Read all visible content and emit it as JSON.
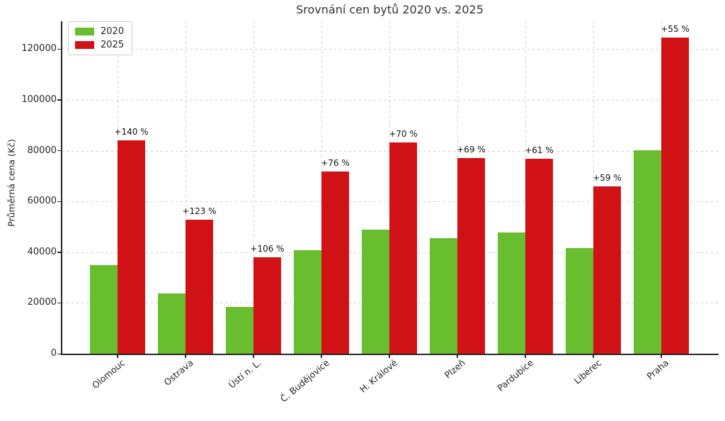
{
  "chart_data": {
    "type": "bar",
    "title": "Srovnání cen bytů 2020 vs. 2025",
    "xlabel": "",
    "ylabel": "Průměrná cena (Kč)",
    "categories": [
      "Olomouc",
      "Ostrava",
      "Ústí n. L.",
      "Č. Budějovice",
      "H. Králové",
      "Plzeň",
      "Pardubice",
      "Liberec",
      "Praha"
    ],
    "series": [
      {
        "name": "2020",
        "color": "#69be30",
        "values": [
          35000,
          23700,
          18500,
          40800,
          49000,
          45600,
          47700,
          41500,
          80300
        ]
      },
      {
        "name": "2025",
        "color": "#d01216",
        "values": [
          84000,
          52900,
          38100,
          71800,
          83300,
          77000,
          76800,
          66000,
          124500
        ]
      }
    ],
    "annotations": [
      "+140 %",
      "+123 %",
      "+106 %",
      "+76 %",
      "+70 %",
      "+69 %",
      "+61 %",
      "+59 %",
      "+55 %"
    ],
    "yticks": [
      0,
      20000,
      40000,
      60000,
      80000,
      100000,
      120000
    ],
    "ylim": [
      0,
      131000
    ],
    "grid": true,
    "legend_position": "upper left"
  }
}
